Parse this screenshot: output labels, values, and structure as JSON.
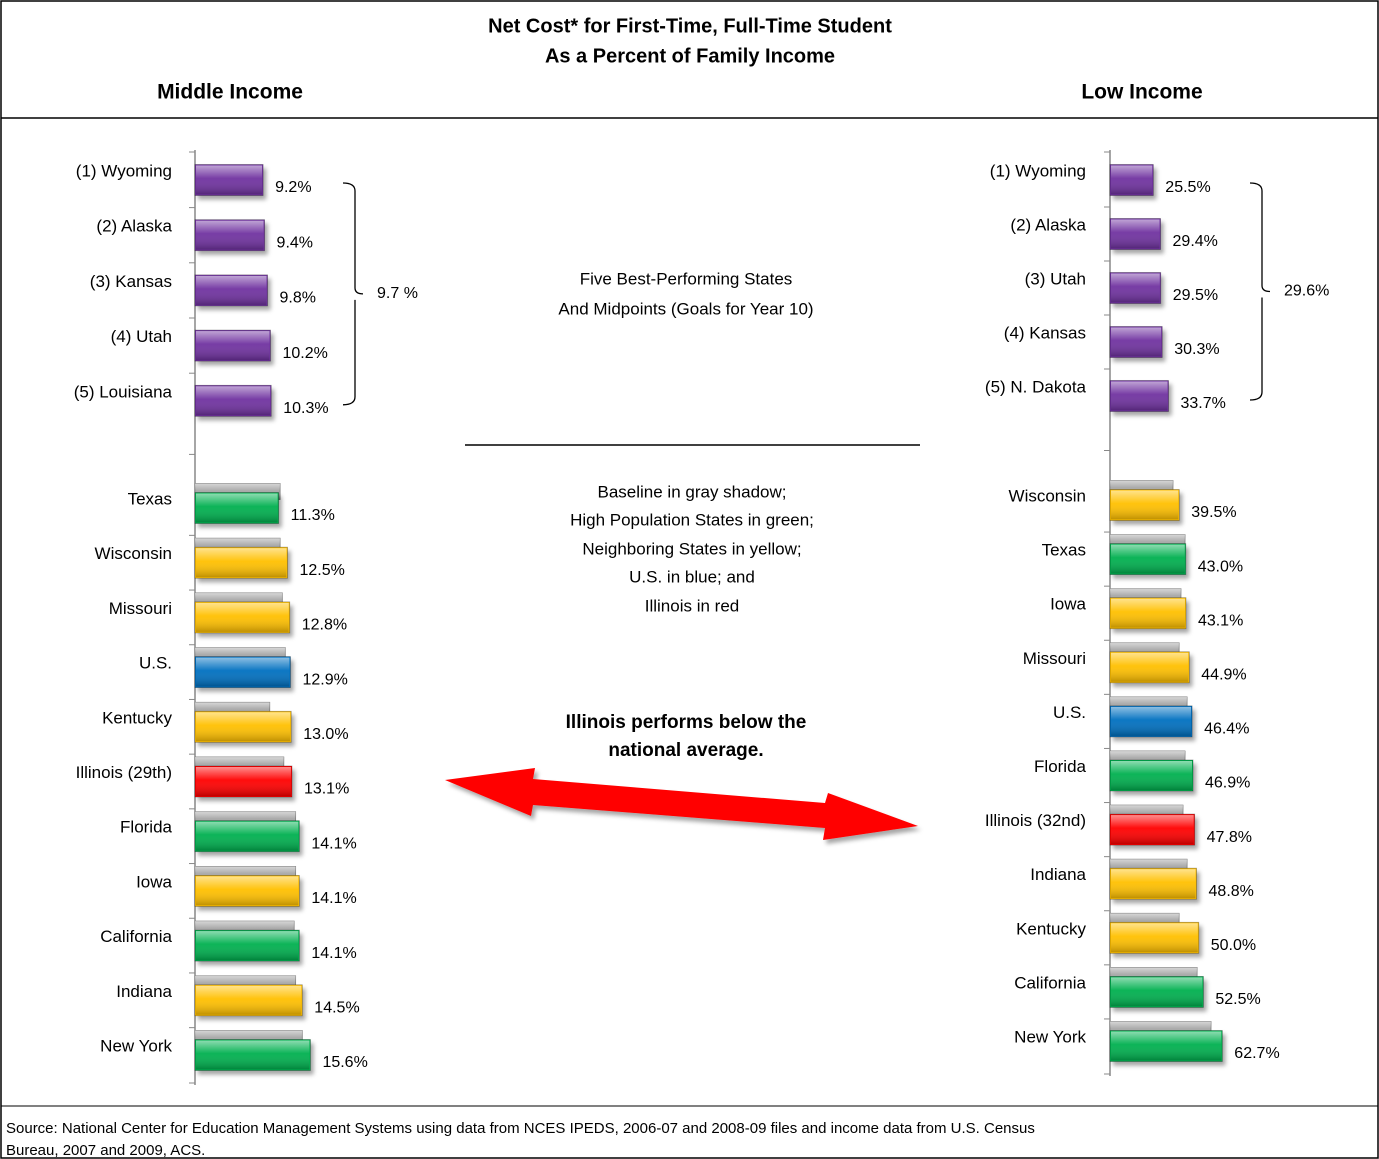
{
  "title": [
    "Net Cost* for First-Time, Full-Time Student",
    "As a Percent of Family Income"
  ],
  "notes": {
    "best": [
      "Five Best-Performing States",
      "And Midpoints (Goals for Year 10)"
    ],
    "legend": [
      "Baseline in gray shadow;",
      "High Population States in green;",
      "Neighboring States in yellow;",
      "U.S. in blue; and",
      "Illinois in red"
    ],
    "callout": [
      "Illinois performs below the",
      "national average."
    ]
  },
  "source": [
    "Source:  National Center for Education Management Systems using data from NCES IPEDS, 2006-07 and 2008-09 files and income data from U.S. Census",
    "Bureau, 2007 and 2009, ACS."
  ],
  "chart_data": [
    {
      "type": "bar",
      "title": "Middle Income",
      "categories": [
        "(1) Wyoming",
        "(2) Alaska",
        "(3) Kansas",
        "(4) Utah",
        "(5) Louisiana",
        "Texas",
        "Wisconsin",
        "Missouri",
        "U.S.",
        "Kentucky",
        "Illinois (29th)",
        "Florida",
        "Iowa",
        "California",
        "Indiana",
        "New York"
      ],
      "values": [
        9.2,
        9.4,
        9.8,
        10.2,
        10.3,
        11.3,
        12.5,
        12.8,
        12.9,
        13.0,
        13.1,
        14.1,
        14.1,
        14.1,
        14.5,
        15.6
      ],
      "value_labels": [
        "9.2%",
        "9.4%",
        "9.8%",
        "10.2%",
        "10.3%",
        "11.3%",
        "12.5%",
        "12.8%",
        "12.9%",
        "13.0%",
        "13.1%",
        "14.1%",
        "14.1%",
        "14.1%",
        "14.5%",
        "15.6%"
      ],
      "colors": [
        "#7030a0",
        "#7030a0",
        "#7030a0",
        "#7030a0",
        "#7030a0",
        "#00b050",
        "#ffc000",
        "#ffc000",
        "#0070c0",
        "#ffc000",
        "#ff0000",
        "#00b050",
        "#ffc000",
        "#00b050",
        "#ffc000",
        "#00b050"
      ],
      "baseline": [
        null,
        null,
        null,
        null,
        null,
        11.5,
        11.5,
        11.8,
        12.2,
        10.1,
        12.0,
        13.6,
        13.6,
        13.4,
        13.6,
        14.5
      ],
      "baseline_color": "#a6a6a6",
      "midpoint": {
        "value": 9.7,
        "label": "9.7 %"
      }
    },
    {
      "type": "bar",
      "title": "Low Income",
      "categories": [
        "(1) Wyoming",
        "(2) Alaska",
        "(3) Utah",
        "(4) Kansas",
        "(5) N. Dakota",
        "Wisconsin",
        "Texas",
        "Iowa",
        "Missouri",
        "U.S.",
        "Florida",
        "Illinois (32nd)",
        "Indiana",
        "Kentucky",
        "California",
        "New York"
      ],
      "values": [
        25.5,
        29.4,
        29.5,
        30.3,
        33.7,
        39.5,
        43.0,
        43.1,
        44.9,
        46.4,
        46.9,
        47.8,
        48.8,
        50.0,
        52.5,
        62.7
      ],
      "value_labels": [
        "25.5%",
        "29.4%",
        "29.5%",
        "30.3%",
        "33.7%",
        "39.5%",
        "43.0%",
        "43.1%",
        "44.9%",
        "46.4%",
        "46.9%",
        "47.8%",
        "48.8%",
        "50.0%",
        "52.5%",
        "62.7%"
      ],
      "colors": [
        "#7030a0",
        "#7030a0",
        "#7030a0",
        "#7030a0",
        "#7030a0",
        "#ffc000",
        "#00b050",
        "#ffc000",
        "#ffc000",
        "#0070c0",
        "#00b050",
        "#ff0000",
        "#ffc000",
        "#ffc000",
        "#00b050",
        "#00b050"
      ],
      "baseline": [
        null,
        null,
        null,
        null,
        null,
        36.1,
        42.6,
        40.4,
        39.4,
        43.7,
        42.6,
        41.5,
        43.7,
        39.4,
        49.1,
        56.6
      ],
      "baseline_color": "#a6a6a6",
      "midpoint": {
        "value": 29.6,
        "label": "29.6%"
      }
    }
  ]
}
